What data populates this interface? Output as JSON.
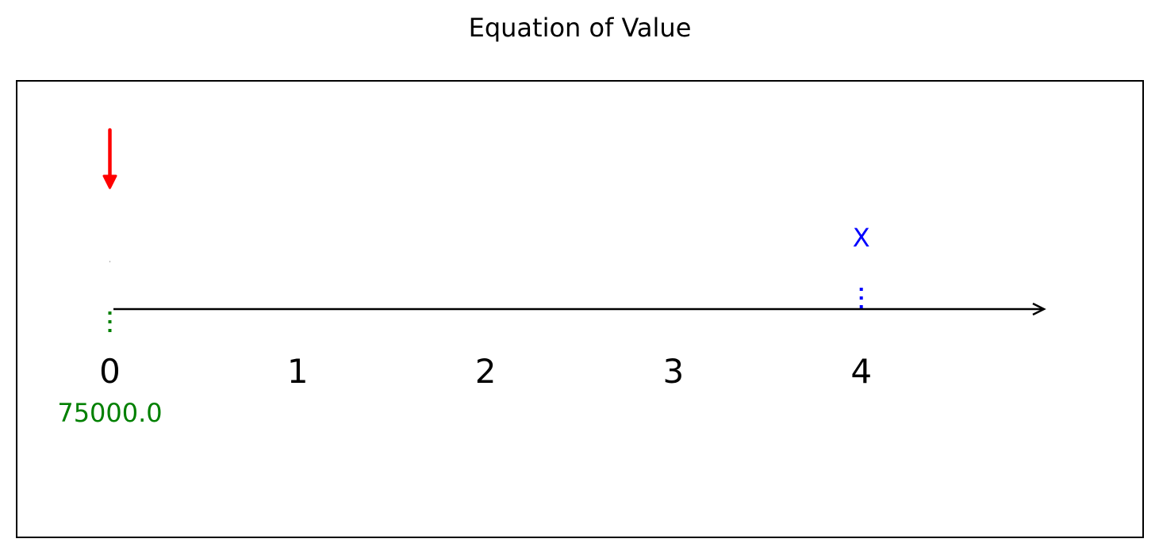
{
  "title": "Equation of Value",
  "timeline": {
    "periods": [
      "0",
      "1",
      "2",
      "3",
      "4"
    ],
    "axis_color": "#000000"
  },
  "cashflows": [
    {
      "time": 0,
      "label": "75000.0",
      "color": "#008000",
      "direction": "below"
    },
    {
      "time": 4,
      "label": "X",
      "color": "#0000ff",
      "direction": "above"
    }
  ],
  "arrow": {
    "time": 0,
    "color": "#ff0000",
    "direction": "down"
  }
}
